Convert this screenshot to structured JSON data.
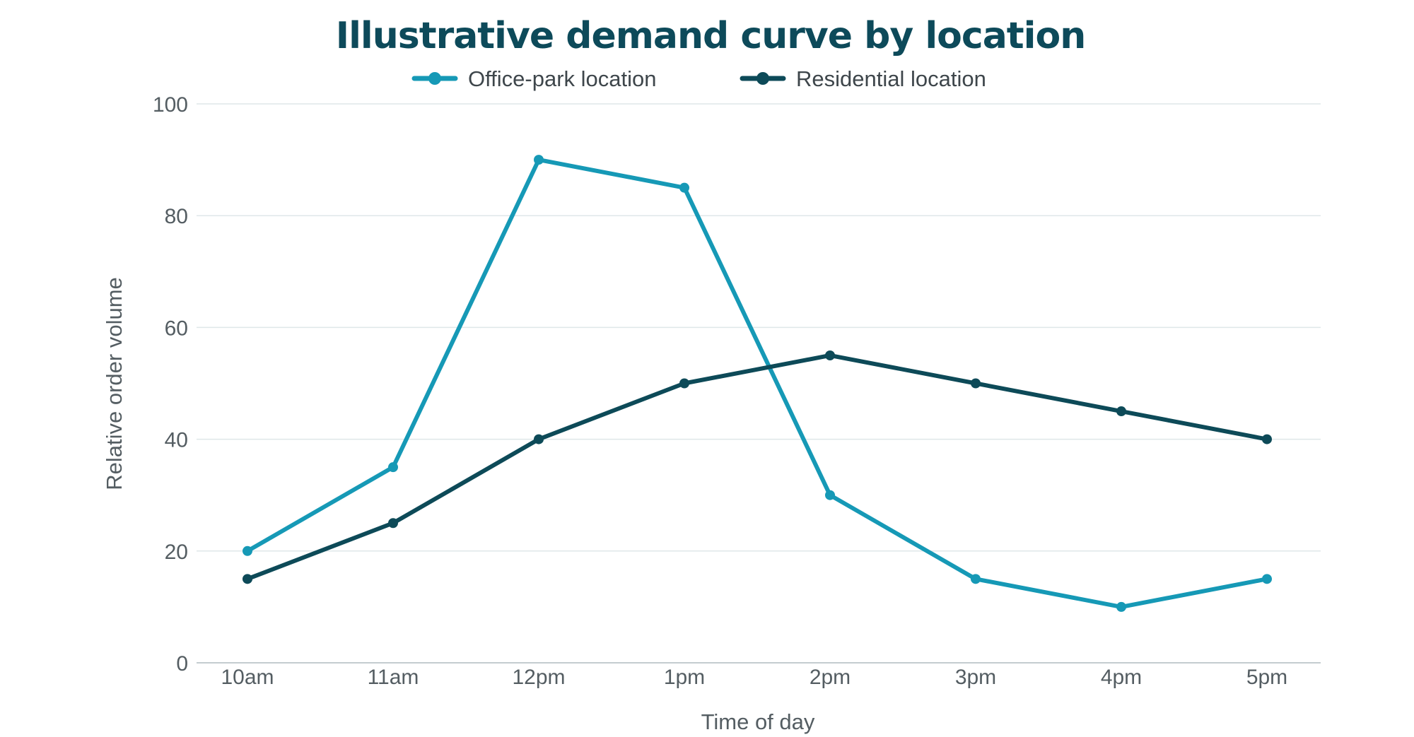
{
  "colors": {
    "title": "#0d4a5a",
    "office": "#1699b6",
    "residential": "#0d4a58",
    "grid": "#dfe7e9",
    "axis": "#c4cccf",
    "text": "#545d62"
  },
  "chart_data": {
    "type": "line",
    "title": "Illustrative demand curve by location",
    "xlabel": "Time of day",
    "ylabel": "Relative order volume",
    "categories": [
      "10am",
      "11am",
      "12pm",
      "1pm",
      "2pm",
      "3pm",
      "4pm",
      "5pm"
    ],
    "ylim": [
      0,
      100
    ],
    "yticks": [
      0,
      20,
      40,
      60,
      80,
      100
    ],
    "grid": true,
    "legend_position": "top-center",
    "series": [
      {
        "name": "Office-park location",
        "color": "#1699b6",
        "values": [
          20,
          35,
          90,
          85,
          30,
          15,
          10,
          15
        ]
      },
      {
        "name": "Residential location",
        "color": "#0d4a58",
        "values": [
          15,
          25,
          40,
          50,
          55,
          50,
          45,
          40
        ]
      }
    ]
  }
}
